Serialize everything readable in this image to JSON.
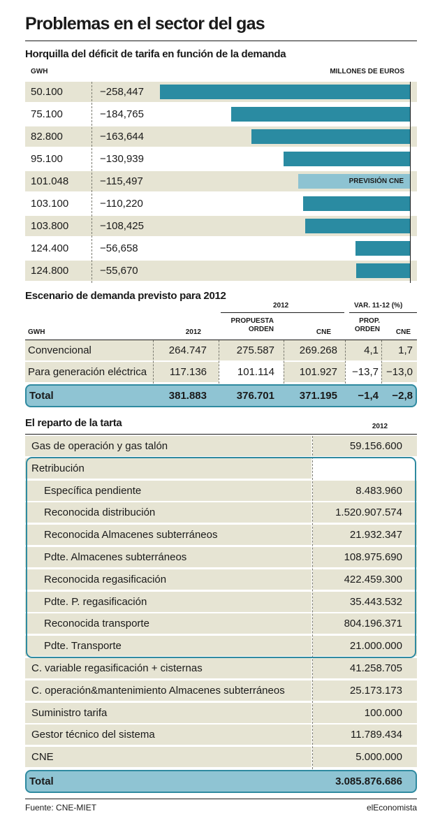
{
  "title": "Problemas en el sector del gas",
  "chart_data": [
    {
      "type": "bar",
      "title": "Horquilla del déficit de tarifa en función de la demanda",
      "xlabel": "MILLONES DE EUROS",
      "ylabel": "GWH",
      "categories": [
        "50.100",
        "75.100",
        "82.800",
        "95.100",
        "101.048",
        "103.100",
        "103.800",
        "124.400",
        "124.800"
      ],
      "value_labels": [
        "−258,447",
        "−184,765",
        "−163,644",
        "−130,939",
        "−115,497",
        "−110,220",
        "−108,425",
        "−56,658",
        "−55,670"
      ],
      "values": [
        -258.447,
        -184.765,
        -163.644,
        -130.939,
        -115.497,
        -110.22,
        -108.425,
        -56.658,
        -55.67
      ],
      "highlight_index": 4,
      "annotation": "PREVISIÓN CNE",
      "xlim": [
        -258.447,
        0
      ],
      "colors": {
        "bar": "#2a8ba2",
        "highlight": "#8dc3d2",
        "band": "#e6e4d3"
      }
    },
    {
      "type": "table",
      "title": "Escenario de demanda previsto para 2012",
      "group_headers": [
        "2012",
        "VAR. 11-12 (%)"
      ],
      "columns": [
        "GWH",
        "2012",
        "PROPUESTA ORDEN",
        "CNE",
        "PROP. ORDEN",
        "CNE"
      ],
      "rows": [
        {
          "label": "Convencional",
          "cells": [
            "264.747",
            "275.587",
            "269.268",
            "4,1",
            "1,7"
          ]
        },
        {
          "label": "Para generación eléctrica",
          "cells": [
            "117.136",
            "101.114",
            "101.927",
            "−13,7",
            "−13,0"
          ]
        }
      ],
      "total": {
        "label": "Total",
        "cells": [
          "381.883",
          "376.701",
          "371.195",
          "−1,4",
          "−2,8"
        ]
      }
    },
    {
      "type": "table",
      "title": "El reparto de la tarta",
      "column": "2012",
      "rows": [
        {
          "label": "Gas de operación y gas talón",
          "value": "59.156.600",
          "indent": false
        },
        {
          "label": "Retribución",
          "value": "",
          "indent": false
        },
        {
          "label": "Específica pendiente",
          "value": "8.483.960",
          "indent": true
        },
        {
          "label": "Reconocida distribución",
          "value": "1.520.907.574",
          "indent": true
        },
        {
          "label": "Reconocida Almacenes subterráneos",
          "value": "21.932.347",
          "indent": true
        },
        {
          "label": "Pdte. Almacenes subterráneos",
          "value": "108.975.690",
          "indent": true
        },
        {
          "label": "Reconocida regasificación",
          "value": "422.459.300",
          "indent": true
        },
        {
          "label": "Pdte. P. regasificación",
          "value": "35.443.532",
          "indent": true
        },
        {
          "label": "Reconocida transporte",
          "value": "804.196.371",
          "indent": true
        },
        {
          "label": "Pdte. Transporte",
          "value": "21.000.000",
          "indent": true
        },
        {
          "label": "C. variable regasificación + cisternas",
          "value": "41.258.705",
          "indent": false
        },
        {
          "label": "C. operación&mantenimiento Almacenes subterráneos",
          "value": "25.173.173",
          "indent": false
        },
        {
          "label": "Suministro tarifa",
          "value": "100.000",
          "indent": false
        },
        {
          "label": "Gestor técnico del sistema",
          "value": "11.789.434",
          "indent": false
        },
        {
          "label": "CNE",
          "value": "5.000.000",
          "indent": false
        }
      ],
      "total": {
        "label": "Total",
        "value": "3.085.876.686"
      }
    }
  ],
  "footer": {
    "source": "Fuente: CNE-MIET",
    "brand": "elEconomista"
  }
}
